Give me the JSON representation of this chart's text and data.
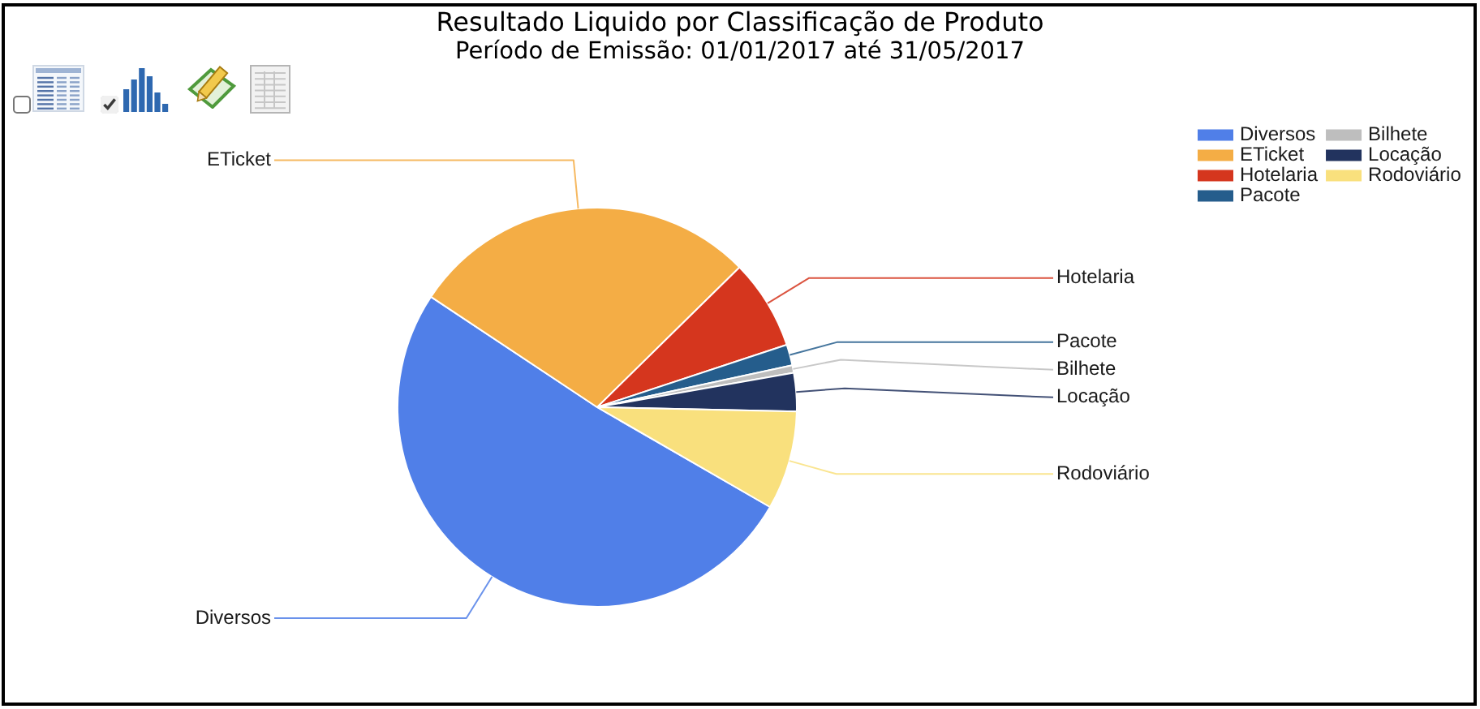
{
  "chart_data": {
    "type": "pie",
    "title": "Resultado Liquido por Classificação de Produto",
    "subtitle": "Período de Emissão: 01/01/2017 até 31/05/2017",
    "categories": [
      "Diversos",
      "ETicket",
      "Hotelaria",
      "Pacote",
      "Bilhete",
      "Locação",
      "Rodoviário"
    ],
    "values": [
      51.0,
      28.3,
      7.3,
      1.7,
      0.6,
      3.1,
      8.0
    ],
    "colors": [
      "#507fe8",
      "#f4ad45",
      "#d5361e",
      "#255d8c",
      "#bebebe",
      "#22335e",
      "#f9e07d"
    ],
    "legend": "top right"
  }
}
